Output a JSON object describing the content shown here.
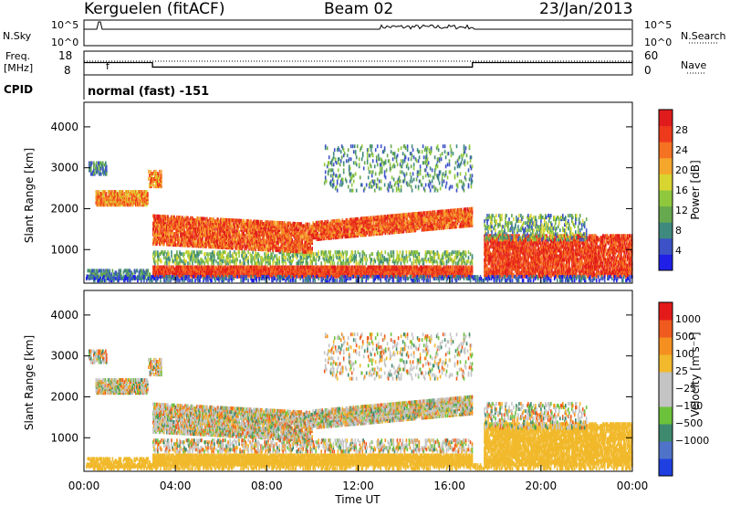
{
  "header": {
    "station": "Kerguelen (fitACF)",
    "beam": "Beam 02",
    "date": "23/Jan/2013"
  },
  "sky_panel": {
    "left_label": "N.Sky",
    "right_label": "N.Search",
    "left_ticks": [
      "10^5",
      "10^0"
    ],
    "right_ticks": [
      "10^5",
      "10^0"
    ]
  },
  "freq_panel": {
    "left_label_line1": "Freq.",
    "left_label_line2": "[MHz]",
    "right_label": "Nave",
    "left_ticks": [
      "18",
      "8"
    ],
    "right_ticks": [
      "60",
      "0"
    ],
    "marker": "f",
    "frequency_steps_mhz": [
      [
        0.0,
        13.2
      ],
      [
        3.0,
        11.3
      ],
      [
        17.0,
        13.2
      ],
      [
        24.0,
        13.2
      ]
    ]
  },
  "cpid": {
    "label": "CPID",
    "text": "normal (fast) -151"
  },
  "chart_data": [
    {
      "type": "heatmap",
      "name": "power-panel",
      "ylabel": "Slant Range [km]",
      "ylim": [
        180,
        4600
      ],
      "yticks": [
        "1000",
        "2000",
        "3000",
        "4000"
      ],
      "x_range_hours": [
        0,
        24
      ],
      "colorbar": {
        "label": "Power [dB]",
        "ticks": [
          "4",
          "8",
          "12",
          "16",
          "20",
          "24",
          "28"
        ],
        "colors": [
          "#1f1fe8",
          "#3c52c6",
          "#3f8a7e",
          "#67a94e",
          "#8fc83d",
          "#d8d530",
          "#f5a72c",
          "#f57223",
          "#ee3a1c",
          "#e01b1b"
        ]
      }
    },
    {
      "type": "heatmap",
      "name": "velocity-panel",
      "ylabel": "Slant Range [km]",
      "ylim": [
        180,
        4600
      ],
      "yticks": [
        "1000",
        "2000",
        "3000",
        "4000"
      ],
      "x_range_hours": [
        0,
        24
      ],
      "xlabel": "Time UT",
      "xticks": [
        "00:00",
        "04:00",
        "08:00",
        "12:00",
        "16:00",
        "20:00",
        "00:00"
      ],
      "colorbar": {
        "label": "Velocity [m s⁻¹]",
        "ticks": [
          "1000",
          "500",
          "100",
          "25",
          "−25",
          "−100",
          "−500",
          "−1000"
        ],
        "colors": [
          "#1f3fe0",
          "#4f73c8",
          "#3e8a6e",
          "#6cc23a",
          "#c4c4c4",
          "#c4c4c4",
          "#f1b92b",
          "#f59020",
          "#ef5a1e",
          "#e41a1a"
        ]
      }
    }
  ]
}
